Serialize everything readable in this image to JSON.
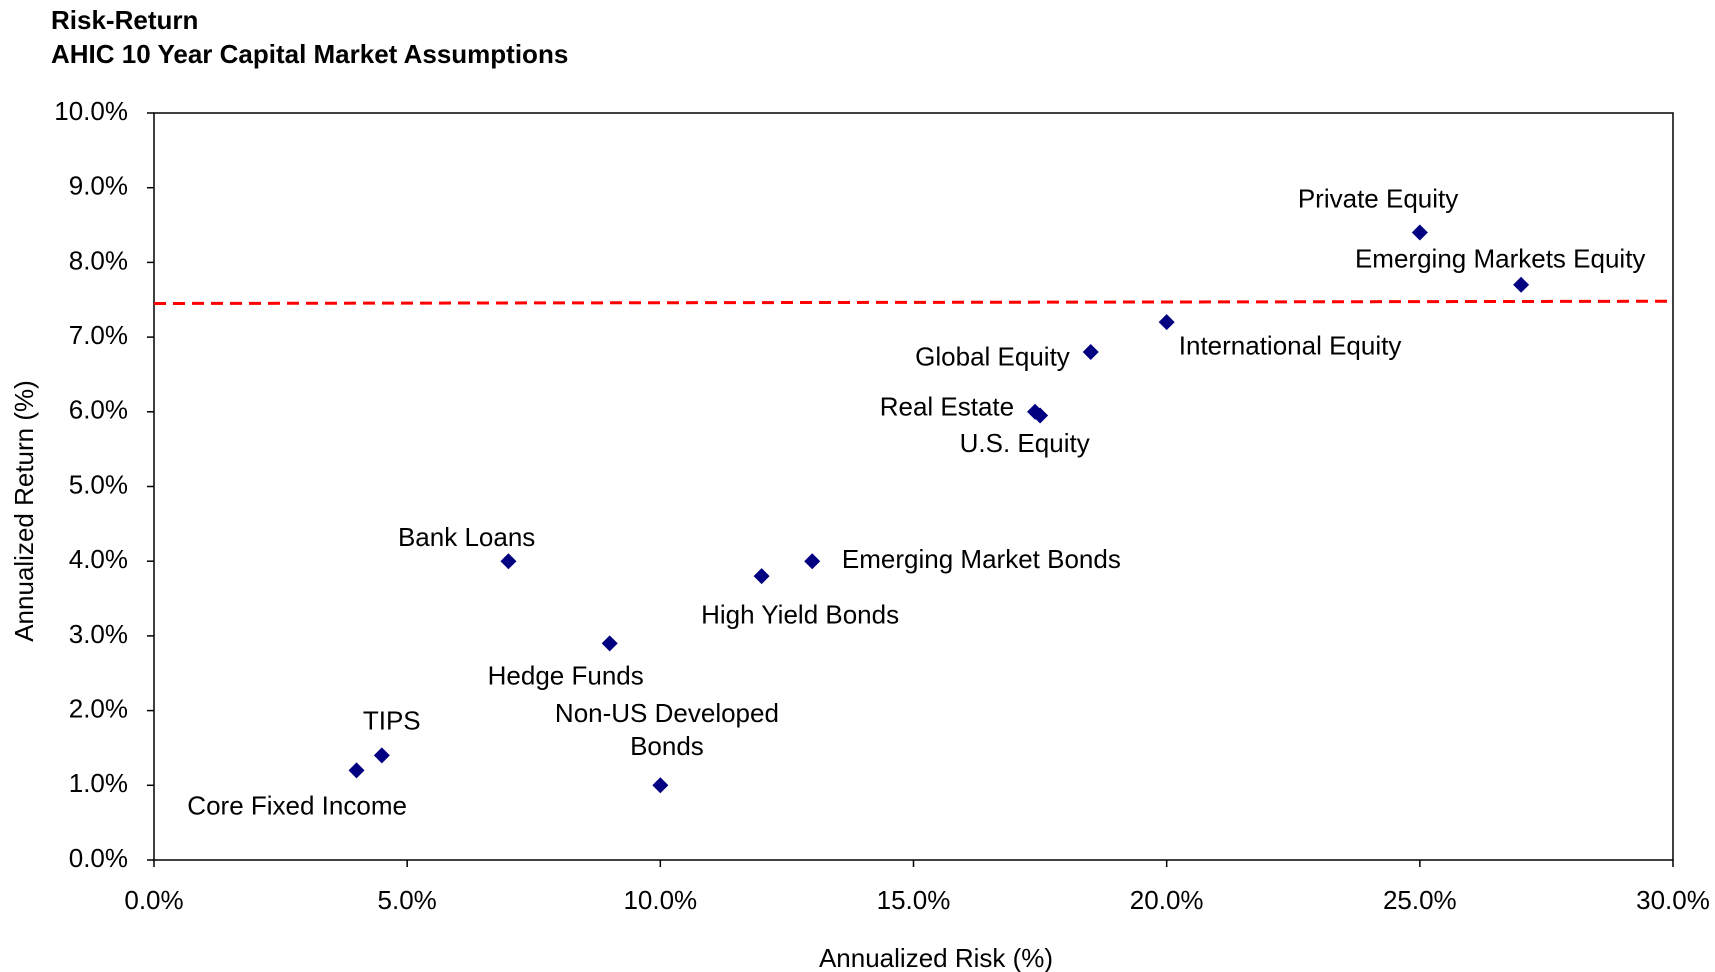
{
  "chart_data": {
    "type": "scatter",
    "title": "Risk-Return",
    "subtitle": "AHIC 10 Year Capital Market Assumptions",
    "x_label": "Annualized Risk (%)",
    "y_label": "Annualized Return (%)",
    "color": "#000080",
    "points": [
      {
        "label": "Private Equity",
        "x": 25,
        "y": 8.4
      },
      {
        "label": "Emerging Markets Equity",
        "x": 27,
        "y": 7.7
      },
      {
        "label": "International Equity",
        "x": 20,
        "y": 7.2
      },
      {
        "label": "Global Equity",
        "x": 18.5,
        "y": 6.8
      },
      {
        "label": "Real Estate",
        "x": 17.4,
        "y": 6.0
      },
      {
        "label": "U.S. Equity",
        "x": 17.5,
        "y": 5.95
      },
      {
        "label": "Bank Loans",
        "x": 7,
        "y": 4.0
      },
      {
        "label": "Emerging Market Bonds",
        "x": 13,
        "y": 4.0
      },
      {
        "label": "High Yield Bonds",
        "x": 12,
        "y": 3.8
      },
      {
        "label": "Hedge Funds",
        "x": 9,
        "y": 2.9
      },
      {
        "label": [
          "Non-US Developed",
          "Bonds"
        ],
        "x": 10,
        "y": 1.0
      },
      {
        "label": "TIPS",
        "x": 4.5,
        "y": 1.4
      },
      {
        "label": "Core Fixed Income",
        "x": 4,
        "y": 1.2
      }
    ],
    "reference_line": {
      "y": [
        7.45,
        7.48
      ],
      "color": "#ff0000",
      "dashed": true
    },
    "xlim": [
      0,
      30
    ],
    "xticks": [
      {
        "value": 0,
        "label": "0.0%"
      },
      {
        "value": 5,
        "label": "5.0%"
      },
      {
        "value": 10,
        "label": "10.0%"
      },
      {
        "value": 15,
        "label": "15.0%"
      },
      {
        "value": 20,
        "label": "20.0%"
      },
      {
        "value": 25,
        "label": "25.0%"
      },
      {
        "value": 30,
        "label": "30.0%"
      }
    ],
    "ylim": [
      0,
      10
    ],
    "yticks": [
      {
        "value": 0,
        "label": "0.0%"
      },
      {
        "value": 1,
        "label": "1.0%"
      },
      {
        "value": 2,
        "label": "2.0%"
      },
      {
        "value": 3,
        "label": "3.0%"
      },
      {
        "value": 4,
        "label": "4.0%"
      },
      {
        "value": 5,
        "label": "5.0%"
      },
      {
        "value": 6,
        "label": "6.0%"
      },
      {
        "value": 7,
        "label": "7.0%"
      },
      {
        "value": 8,
        "label": "8.0%"
      },
      {
        "value": 9,
        "label": "9.0%"
      },
      {
        "value": 10,
        "label": "10.0%"
      }
    ],
    "grid": false
  }
}
